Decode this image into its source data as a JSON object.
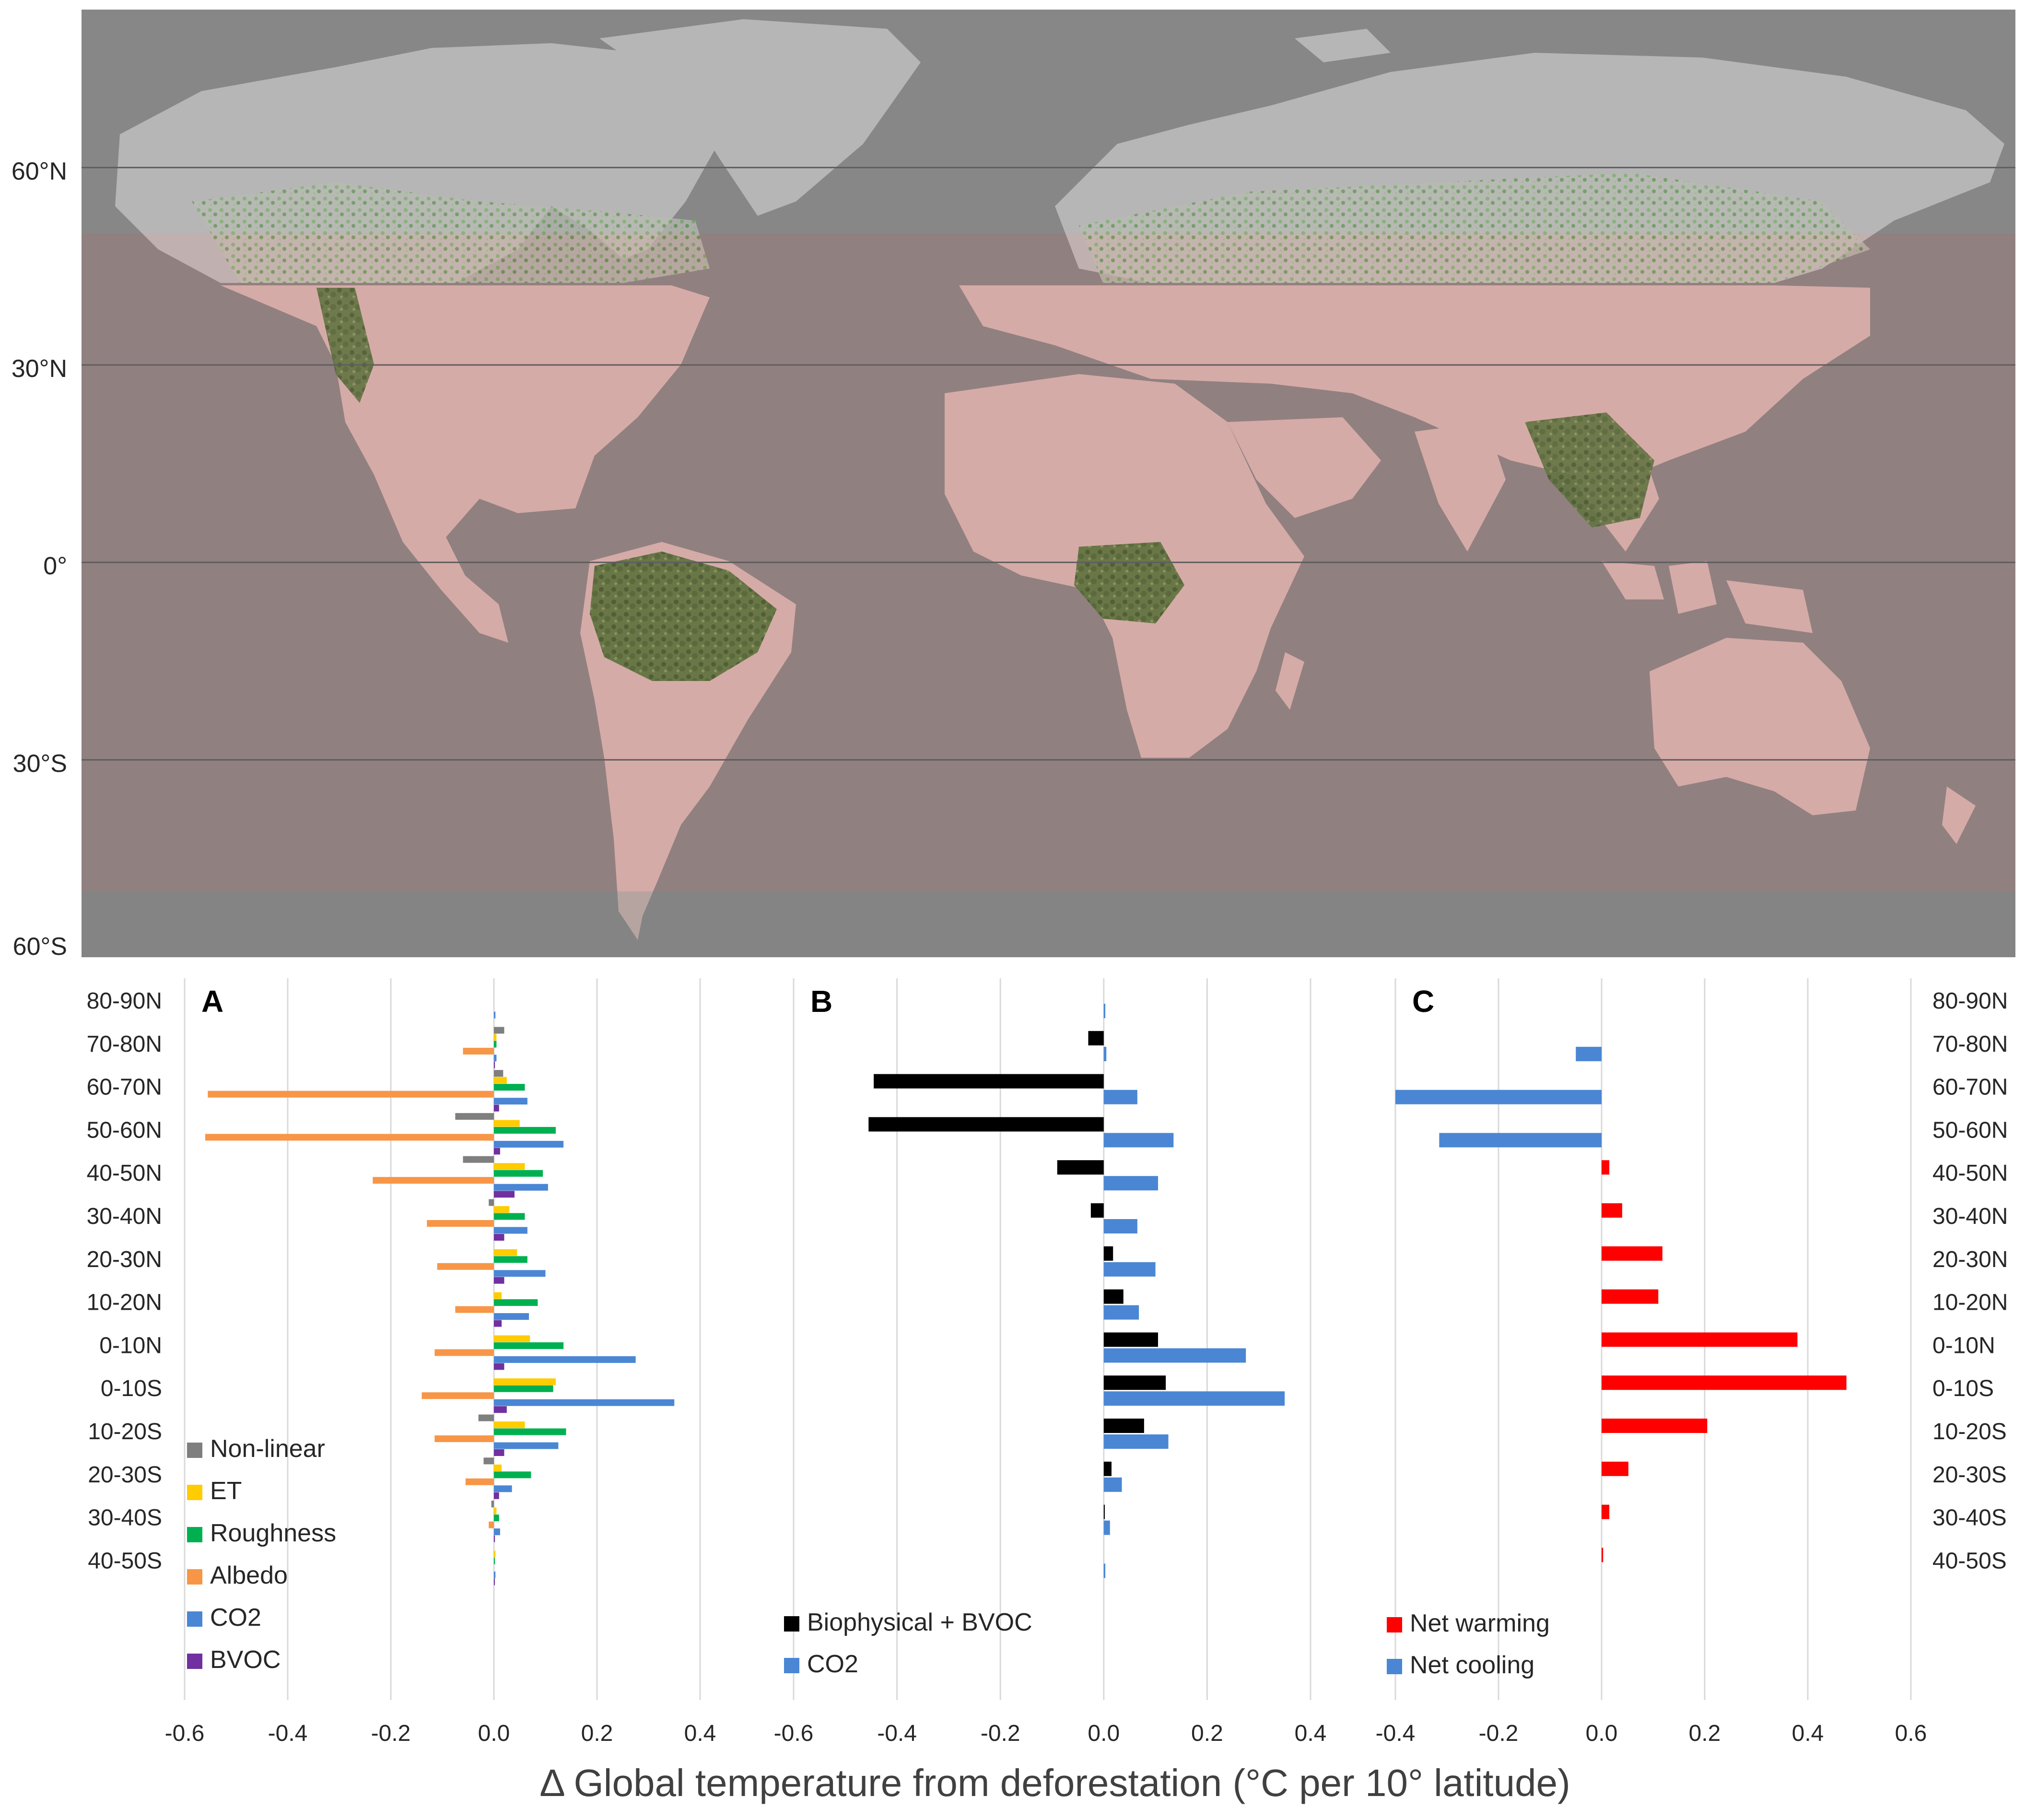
{
  "map": {
    "lat_labels": [
      "60°N",
      "30°N",
      "0°",
      "30°S",
      "60°S"
    ],
    "lat_values": [
      60,
      30,
      0,
      -30,
      -60
    ],
    "lat_range": [
      -60,
      84
    ],
    "highlight_band": [
      -50,
      50
    ],
    "colors": {
      "ocean": "#8c8c8c",
      "polar_band": "#8e8e8e",
      "tropical_band": "#a07c7c",
      "land_polar": "#cdcdcd",
      "land_tropical": "#e7c6c0",
      "forest": "#4d7a38"
    }
  },
  "chart_data": [
    {
      "type": "bar",
      "panel_label": "A",
      "orientation": "horizontal",
      "categories": [
        "80-90N",
        "70-80N",
        "60-70N",
        "50-60N",
        "40-50N",
        "30-40N",
        "20-30N",
        "10-20N",
        "0-10N",
        "0-10S",
        "10-20S",
        "20-30S",
        "30-40S",
        "40-50S"
      ],
      "series": [
        {
          "name": "Non-linear",
          "color": "#7f7f7f",
          "values": [
            0.0,
            0.02,
            0.018,
            -0.075,
            -0.06,
            -0.01,
            0.0,
            0.0,
            0.0,
            0.0,
            -0.03,
            -0.02,
            -0.005,
            0.0
          ]
        },
        {
          "name": "ET",
          "color": "#ffcc00",
          "values": [
            0.0,
            0.005,
            0.025,
            0.05,
            0.06,
            0.03,
            0.045,
            0.015,
            0.07,
            0.12,
            0.06,
            0.015,
            0.005,
            0.003
          ]
        },
        {
          "name": "Roughness",
          "color": "#00b050",
          "values": [
            0.0,
            0.005,
            0.06,
            0.12,
            0.095,
            0.06,
            0.065,
            0.085,
            0.135,
            0.115,
            0.14,
            0.072,
            0.01,
            0.002
          ]
        },
        {
          "name": "Albedo",
          "color": "#f79646",
          "values": [
            0.0,
            -0.06,
            -0.555,
            -0.56,
            -0.235,
            -0.13,
            -0.11,
            -0.075,
            -0.115,
            -0.14,
            -0.115,
            -0.055,
            -0.01,
            0.0
          ]
        },
        {
          "name": "CO2",
          "color": "#4a86d4",
          "values": [
            0.003,
            0.005,
            0.065,
            0.135,
            0.105,
            0.065,
            0.1,
            0.068,
            0.275,
            0.35,
            0.125,
            0.035,
            0.012,
            0.003
          ]
        },
        {
          "name": "BVOC",
          "color": "#7030a0",
          "values": [
            0.0,
            0.002,
            0.01,
            0.012,
            0.04,
            0.02,
            0.02,
            0.015,
            0.02,
            0.025,
            0.02,
            0.01,
            0.002,
            0.001
          ]
        }
      ],
      "xlim": [
        -0.6,
        0.4
      ],
      "xticks": [
        "-0.6",
        "-0.4",
        "-0.2",
        "0.0",
        "0.2",
        "0.4"
      ],
      "grid": true,
      "legend": "bottom-left"
    },
    {
      "type": "bar",
      "panel_label": "B",
      "orientation": "horizontal",
      "categories": [
        "80-90N",
        "70-80N",
        "60-70N",
        "50-60N",
        "40-50N",
        "30-40N",
        "20-30N",
        "10-20N",
        "0-10N",
        "0-10S",
        "10-20S",
        "20-30S",
        "30-40S",
        "40-50S"
      ],
      "series": [
        {
          "name": "Biophysical + BVOC",
          "color": "#000000",
          "values": [
            0.0,
            -0.03,
            -0.445,
            -0.455,
            -0.09,
            -0.025,
            0.018,
            0.038,
            0.105,
            0.12,
            0.078,
            0.015,
            0.002,
            0.0
          ]
        },
        {
          "name": "CO2",
          "color": "#4a86d4",
          "values": [
            0.003,
            0.005,
            0.065,
            0.135,
            0.105,
            0.065,
            0.1,
            0.068,
            0.275,
            0.35,
            0.125,
            0.035,
            0.012,
            0.003
          ]
        }
      ],
      "xlim": [
        -0.6,
        0.4
      ],
      "xticks": [
        "-0.6",
        "-0.4",
        "-0.2",
        "0.0",
        "0.2",
        "0.4"
      ],
      "grid": true,
      "legend": "bottom-left"
    },
    {
      "type": "bar",
      "panel_label": "C",
      "orientation": "horizontal",
      "categories": [
        "80-90N",
        "70-80N",
        "60-70N",
        "50-60N",
        "40-50N",
        "30-40N",
        "20-30N",
        "10-20N",
        "0-10N",
        "0-10S",
        "10-20S",
        "20-30S",
        "30-40S",
        "40-50S"
      ],
      "series": [
        {
          "name": "Net warming",
          "color": "#ff0000",
          "values": [
            0,
            0,
            0,
            0,
            0.015,
            0.04,
            0.118,
            0.11,
            0.38,
            0.475,
            0.205,
            0.052,
            0.015,
            0.003
          ]
        },
        {
          "name": "Net cooling",
          "color": "#4a86d4",
          "values": [
            0,
            -0.05,
            -0.4,
            -0.315,
            0,
            0,
            0,
            0,
            0,
            0,
            0,
            0,
            0,
            0
          ]
        }
      ],
      "xlim": [
        -0.4,
        0.6
      ],
      "xticks": [
        "-0.4",
        "-0.2",
        "0.0",
        "0.2",
        "0.4",
        "0.6"
      ],
      "grid": true,
      "legend": "bottom-left"
    }
  ],
  "xlabel": "Δ Global temperature from deforestation (°C per 10° latitude)"
}
